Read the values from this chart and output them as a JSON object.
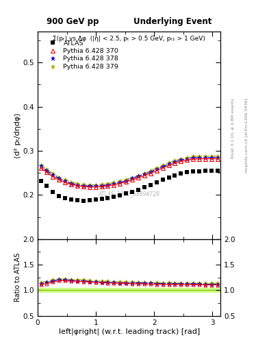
{
  "title_left": "900 GeV pp",
  "title_right": "Underlying Event",
  "subplot_title": "Σ(pₜ) vs Δφ  (|η| < 2.5, pₜ > 0.5 GeV, pₜ₁ > 1 GeV)",
  "xlabel": "left|φright| (w.r.t. leading track) [rad]",
  "ylabel_main": "⟨d² pₜ/dηdφ⟩",
  "ylabel_ratio": "Ratio to ATLAS",
  "right_label": "Rivet 3.1.10, ≥ 2.8M events",
  "right_label2": "mcplots.cern.ch [arXiv:1306.3436]",
  "watermark": "ATLAS_2010_S8894728",
  "xlim": [
    0,
    3.14159
  ],
  "ylim_main": [
    0.1,
    0.57
  ],
  "ylim_ratio": [
    0.5,
    2.0
  ],
  "yticks_main": [
    0.2,
    0.3,
    0.4,
    0.5
  ],
  "yticks_ratio": [
    0.5,
    1.0,
    1.5,
    2.0
  ],
  "xticks": [
    0,
    1,
    2,
    3
  ],
  "atlas_x": [
    0.053,
    0.157,
    0.262,
    0.367,
    0.471,
    0.576,
    0.681,
    0.785,
    0.89,
    0.995,
    1.1,
    1.204,
    1.309,
    1.414,
    1.519,
    1.623,
    1.728,
    1.833,
    1.938,
    2.042,
    2.147,
    2.252,
    2.356,
    2.461,
    2.566,
    2.671,
    2.775,
    2.88,
    2.985,
    3.09
  ],
  "atlas_y": [
    0.232,
    0.22,
    0.207,
    0.197,
    0.192,
    0.19,
    0.188,
    0.187,
    0.188,
    0.189,
    0.191,
    0.193,
    0.196,
    0.199,
    0.203,
    0.207,
    0.212,
    0.217,
    0.222,
    0.228,
    0.234,
    0.239,
    0.244,
    0.248,
    0.251,
    0.253,
    0.254,
    0.255,
    0.255,
    0.255
  ],
  "py370_x": [
    0.053,
    0.157,
    0.262,
    0.367,
    0.471,
    0.576,
    0.681,
    0.785,
    0.89,
    0.995,
    1.1,
    1.204,
    1.309,
    1.414,
    1.519,
    1.623,
    1.728,
    1.833,
    1.938,
    2.042,
    2.147,
    2.252,
    2.356,
    2.461,
    2.566,
    2.671,
    2.775,
    2.88,
    2.985,
    3.09
  ],
  "py370_y": [
    0.261,
    0.251,
    0.241,
    0.234,
    0.228,
    0.224,
    0.221,
    0.219,
    0.218,
    0.218,
    0.219,
    0.221,
    0.223,
    0.226,
    0.23,
    0.234,
    0.239,
    0.244,
    0.249,
    0.255,
    0.261,
    0.267,
    0.272,
    0.276,
    0.279,
    0.281,
    0.282,
    0.282,
    0.282,
    0.282
  ],
  "py378_x": [
    0.053,
    0.157,
    0.262,
    0.367,
    0.471,
    0.576,
    0.681,
    0.785,
    0.89,
    0.995,
    1.1,
    1.204,
    1.309,
    1.414,
    1.519,
    1.623,
    1.728,
    1.833,
    1.938,
    2.042,
    2.147,
    2.252,
    2.356,
    2.461,
    2.566,
    2.671,
    2.775,
    2.88,
    2.985,
    3.09
  ],
  "py378_y": [
    0.265,
    0.255,
    0.245,
    0.237,
    0.231,
    0.226,
    0.223,
    0.221,
    0.22,
    0.22,
    0.221,
    0.223,
    0.225,
    0.228,
    0.232,
    0.237,
    0.242,
    0.247,
    0.252,
    0.258,
    0.264,
    0.27,
    0.275,
    0.279,
    0.282,
    0.284,
    0.285,
    0.285,
    0.285,
    0.285
  ],
  "py379_x": [
    0.053,
    0.157,
    0.262,
    0.367,
    0.471,
    0.576,
    0.681,
    0.785,
    0.89,
    0.995,
    1.1,
    1.204,
    1.309,
    1.414,
    1.519,
    1.623,
    1.728,
    1.833,
    1.938,
    2.042,
    2.147,
    2.252,
    2.356,
    2.461,
    2.566,
    2.671,
    2.775,
    2.88,
    2.985,
    3.09
  ],
  "py379_y": [
    0.268,
    0.258,
    0.248,
    0.24,
    0.234,
    0.229,
    0.226,
    0.224,
    0.223,
    0.223,
    0.224,
    0.226,
    0.228,
    0.231,
    0.235,
    0.239,
    0.244,
    0.249,
    0.255,
    0.261,
    0.267,
    0.273,
    0.278,
    0.282,
    0.285,
    0.287,
    0.288,
    0.288,
    0.288,
    0.288
  ],
  "ratio370_y": [
    1.115,
    1.131,
    1.163,
    1.188,
    1.188,
    1.179,
    1.175,
    1.171,
    1.16,
    1.153,
    1.147,
    1.145,
    1.138,
    1.136,
    1.133,
    1.13,
    1.127,
    1.124,
    1.122,
    1.118,
    1.115,
    1.117,
    1.115,
    1.113,
    1.112,
    1.111,
    1.11,
    1.106,
    1.106,
    1.106
  ],
  "ratio378_y": [
    1.132,
    1.149,
    1.184,
    1.203,
    1.203,
    1.189,
    1.186,
    1.182,
    1.17,
    1.164,
    1.157,
    1.155,
    1.148,
    1.146,
    1.143,
    1.145,
    1.142,
    1.138,
    1.135,
    1.132,
    1.128,
    1.129,
    1.127,
    1.125,
    1.123,
    1.122,
    1.12,
    1.118,
    1.118,
    1.118
  ],
  "ratio379_y": [
    1.155,
    1.172,
    1.208,
    1.218,
    1.219,
    1.21,
    1.207,
    1.203,
    1.191,
    1.185,
    1.178,
    1.175,
    1.168,
    1.166,
    1.163,
    1.16,
    1.156,
    1.153,
    1.152,
    1.15,
    1.146,
    1.147,
    1.144,
    1.142,
    1.14,
    1.139,
    1.138,
    1.133,
    1.133,
    1.133
  ],
  "atlas_color": "#000000",
  "py370_color": "#ee0000",
  "py378_color": "#0000ee",
  "py379_color": "#aaaa00",
  "band_fill_color": "#ccff88",
  "band_line_color": "#88bb00"
}
